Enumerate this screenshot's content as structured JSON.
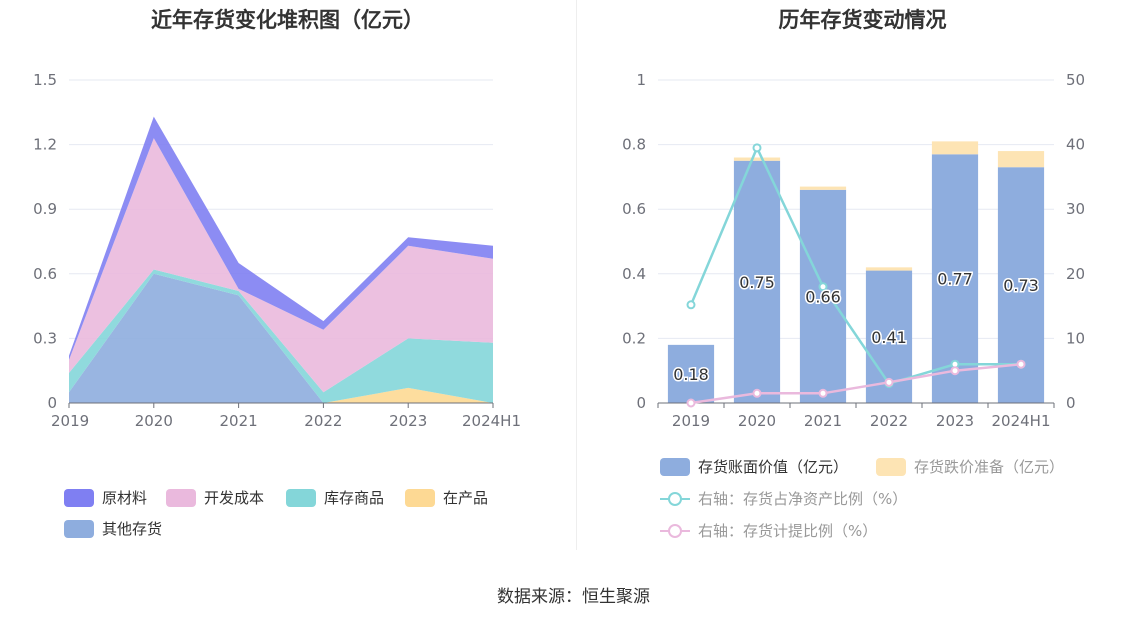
{
  "source": "数据来源：恒生聚源",
  "chart_data": [
    {
      "type": "area",
      "stacked": true,
      "title": "近年存货变化堆积图（亿元）",
      "categories": [
        "2019",
        "2020",
        "2021",
        "2022",
        "2023",
        "2024H1"
      ],
      "ylim": [
        0,
        1.5
      ],
      "yticks": [
        "0",
        "0.3",
        "0.6",
        "0.9",
        "1.2",
        "1.5"
      ],
      "grid": true,
      "legend_position": "bottom",
      "series": [
        {
          "name": "其他存货",
          "color": "#8eadde",
          "values": [
            0.05,
            0.6,
            0.5,
            0.0,
            0.0,
            0.0
          ]
        },
        {
          "name": "在产品",
          "color": "#fdd994",
          "values": [
            0.0,
            0.0,
            0.0,
            0.0,
            0.07,
            0.0
          ]
        },
        {
          "name": "库存商品",
          "color": "#84d6d9",
          "values": [
            0.09,
            0.02,
            0.02,
            0.05,
            0.23,
            0.28
          ]
        },
        {
          "name": "开发成本",
          "color": "#eab9dd",
          "values": [
            0.06,
            0.61,
            0.01,
            0.29,
            0.43,
            0.39
          ]
        },
        {
          "name": "原材料",
          "color": "#7f7ff2",
          "values": [
            0.02,
            0.1,
            0.12,
            0.04,
            0.04,
            0.06
          ]
        }
      ],
      "legend_order": [
        "原材料",
        "开发成本",
        "库存商品",
        "在产品",
        "其他存货"
      ]
    },
    {
      "type": "bar",
      "title": "历年存货变动情况",
      "categories": [
        "2019",
        "2020",
        "2021",
        "2022",
        "2023",
        "2024H1"
      ],
      "ylim": [
        0,
        1
      ],
      "yticks": [
        "0",
        "0.2",
        "0.4",
        "0.6",
        "0.8",
        "1"
      ],
      "y2lim": [
        0,
        50
      ],
      "y2ticks": [
        "0",
        "10",
        "20",
        "30",
        "40",
        "50"
      ],
      "grid": true,
      "legend_position": "bottom",
      "series": [
        {
          "name": "存货账面价值（亿元）",
          "type": "bar",
          "stack": "a",
          "color": "#8eadde",
          "values": [
            0.18,
            0.75,
            0.66,
            0.41,
            0.77,
            0.73
          ],
          "labels": [
            "0.18",
            "0.75",
            "0.66",
            "0.41",
            "0.77",
            "0.73"
          ]
        },
        {
          "name": "存货跌价准备（亿元）",
          "type": "bar",
          "stack": "a",
          "color": "#fde4b4",
          "values": [
            0.0,
            0.01,
            0.01,
            0.01,
            0.04,
            0.05
          ]
        },
        {
          "name": "右轴：存货占净资产比例（%）",
          "type": "line",
          "axis": "right",
          "color": "#84d6d9",
          "values": [
            15.2,
            39.5,
            18.0,
            3.0,
            6.0,
            6.0
          ]
        },
        {
          "name": "右轴：存货计提比例（%）",
          "type": "line",
          "axis": "right",
          "color": "#eab9dd",
          "values": [
            0.0,
            1.5,
            1.5,
            3.2,
            5.0,
            6.0
          ]
        }
      ]
    }
  ]
}
